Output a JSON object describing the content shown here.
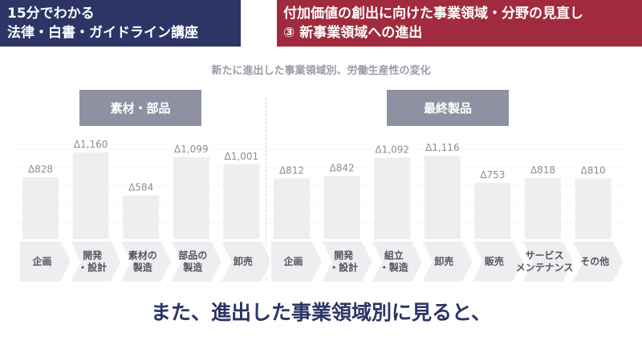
{
  "header": {
    "left_line1": "15分でわかる",
    "left_line2": "法律・白書・ガイドライン講座",
    "right_line1": "付加価値の創出に向けた事業領域・分野の見直し",
    "right_line2": "③ 新事業領域への進出"
  },
  "caption": "また、進出した事業領域別に見ると、",
  "colors": {
    "bar": "#eeeef1",
    "arrow": "#eeeef1",
    "group_label": "#8f91a3",
    "header_left": "#2c3566",
    "header_right": "#a12b3e"
  },
  "chart_data": {
    "type": "bar",
    "title": "新たに進出した事業領域別、労働生産性の変化",
    "groups": [
      {
        "name": "素材・部品",
        "categories": [
          "企画",
          "開発・設計",
          "素材の製造",
          "部品の製造",
          "卸売"
        ],
        "category_lines": [
          [
            "企画"
          ],
          [
            "開発",
            "・設計"
          ],
          [
            "素材の",
            "製造"
          ],
          [
            "部品の",
            "製造"
          ],
          [
            "卸売"
          ]
        ],
        "values": [
          828,
          1160,
          584,
          1099,
          1001
        ],
        "labels": [
          "Δ828",
          "Δ1,160",
          "Δ584",
          "Δ1,099",
          "Δ1,001"
        ]
      },
      {
        "name": "最終製品",
        "categories": [
          "企画",
          "開発・設計",
          "組立・製造",
          "卸売",
          "販売",
          "サービスメンテナンス",
          "その他"
        ],
        "category_lines": [
          [
            "企画"
          ],
          [
            "開発",
            "・設計"
          ],
          [
            "組立",
            "・製造"
          ],
          [
            "卸売"
          ],
          [
            "販売"
          ],
          [
            "サービス",
            "メンテナンス"
          ],
          [
            "その他"
          ]
        ],
        "values": [
          812,
          842,
          1092,
          1116,
          753,
          818,
          810
        ],
        "labels": [
          "Δ812",
          "Δ842",
          "Δ1,092",
          "Δ1,116",
          "Δ753",
          "Δ818",
          "Δ810"
        ]
      }
    ]
  }
}
